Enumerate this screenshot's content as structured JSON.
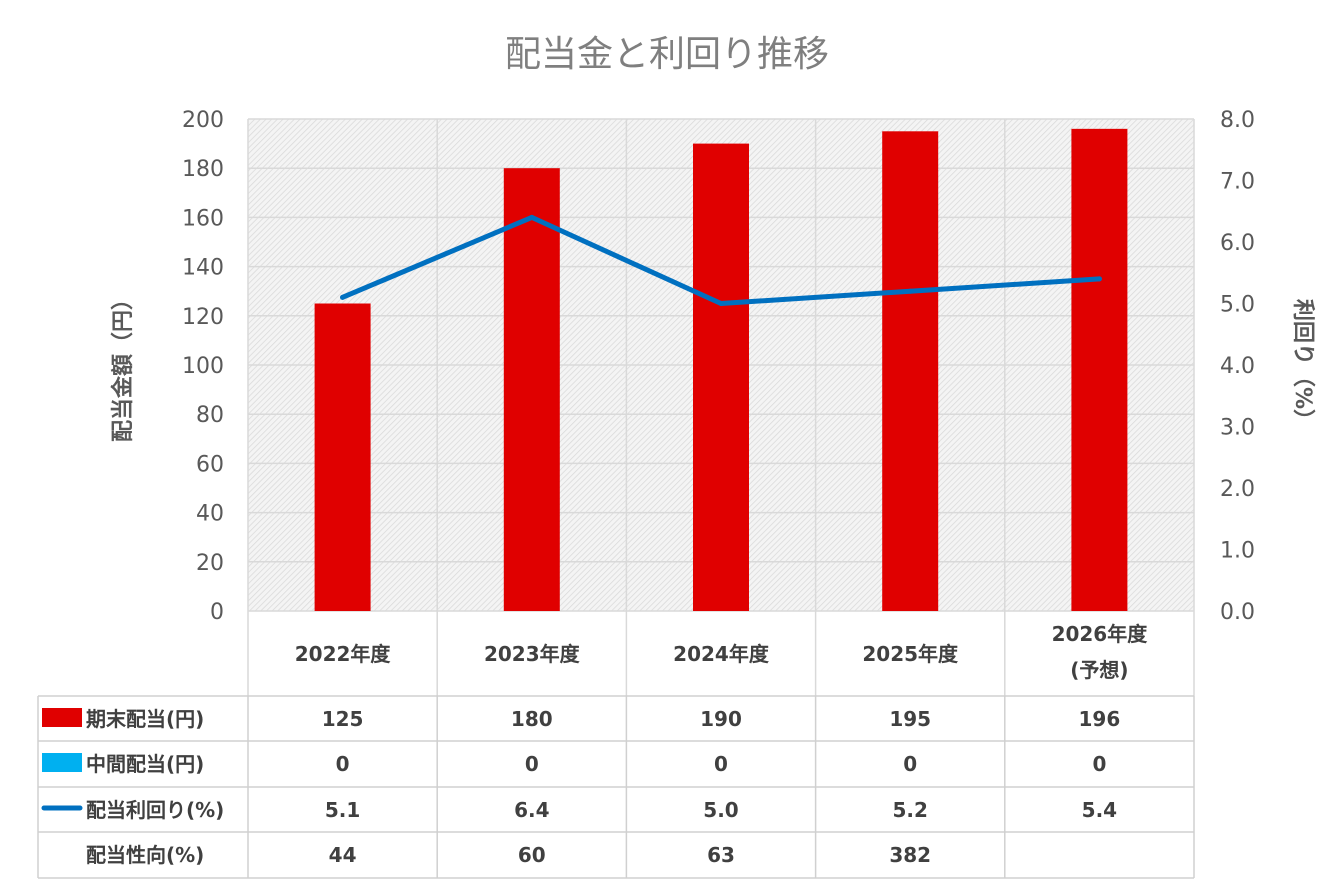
{
  "chart_data": {
    "type": "bar",
    "title": "配当金と利回り推移",
    "ylabel": "配当金額（円）",
    "y2label": "利回り（%）",
    "ylim": [
      0,
      200
    ],
    "y2lim": [
      0,
      8
    ],
    "yticks": [
      "0",
      "20",
      "40",
      "60",
      "80",
      "100",
      "120",
      "140",
      "160",
      "180",
      "200"
    ],
    "y2ticks": [
      "0.0",
      "1.0",
      "2.0",
      "3.0",
      "4.0",
      "5.0",
      "6.0",
      "7.0",
      "8.0"
    ],
    "categories": [
      [
        "2022年度"
      ],
      [
        "2023年度"
      ],
      [
        "2024年度"
      ],
      [
        "2025年度"
      ],
      [
        "2026年度",
        "(予想)"
      ]
    ],
    "series": [
      {
        "name": "期末配当(円)",
        "kind": "bar",
        "axis": "left",
        "color": "#e00000",
        "values": [
          125,
          180,
          190,
          195,
          196
        ],
        "labels": [
          "125",
          "180",
          "190",
          "195",
          "196"
        ]
      },
      {
        "name": "中間配当(円)",
        "kind": "bar",
        "axis": "left",
        "color": "#00b0f0",
        "values": [
          0,
          0,
          0,
          0,
          0
        ],
        "labels": [
          "0",
          "0",
          "0",
          "0",
          "0"
        ]
      },
      {
        "name": "配当利回り(%)",
        "kind": "line",
        "axis": "right",
        "color": "#0070c0",
        "values": [
          5.1,
          6.4,
          5.0,
          5.2,
          5.4
        ],
        "labels": [
          "5.1",
          "6.4",
          "5.0",
          "5.2",
          "5.4"
        ]
      },
      {
        "name": "配当性向(%)",
        "kind": "table",
        "values": [
          44,
          60,
          63,
          382,
          null
        ],
        "labels": [
          "44",
          "60",
          "63",
          "382",
          ""
        ]
      }
    ],
    "grid": true,
    "legend": "data-table"
  }
}
